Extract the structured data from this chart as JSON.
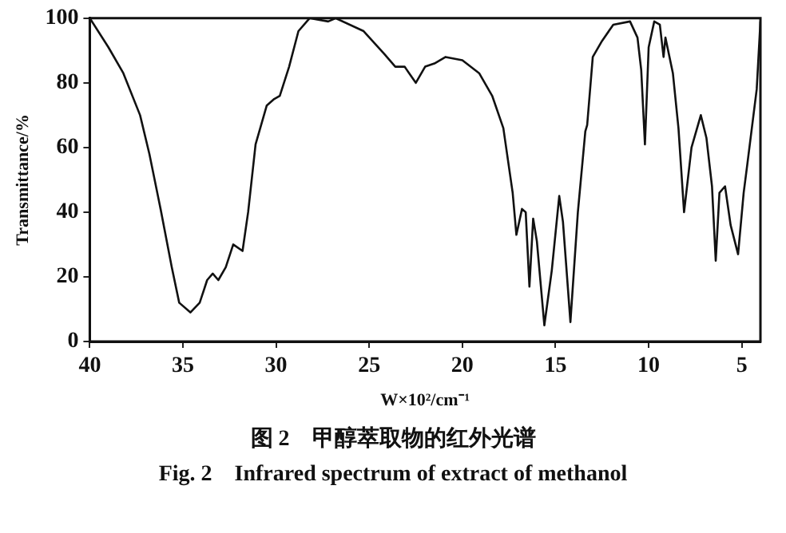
{
  "chart_data": {
    "type": "line",
    "title": "图 2　甲醇萃取物的红外光谱",
    "subtitle": "Fig. 2　Infrared spectrum of extract of methanol",
    "xlabel": "W×10²/cm⁻¹",
    "ylabel": "Transmittance/%",
    "xlim": [
      40,
      4
    ],
    "xticks": [
      40,
      35,
      30,
      25,
      20,
      15,
      10,
      5
    ],
    "ylim": [
      0,
      100
    ],
    "yticks": [
      0,
      20,
      40,
      60,
      80,
      100
    ],
    "grid": false,
    "legend": false,
    "marker": "none",
    "line_style": "solid",
    "series": [
      {
        "color": "#111111",
        "x": [
          40,
          39,
          38.2,
          37.3,
          36.8,
          36.2,
          35.6,
          35.2,
          34.6,
          34.1,
          33.7,
          33.4,
          33.1,
          32.7,
          32.3,
          31.8,
          31.5,
          31.1,
          30.5,
          30.1,
          29.8,
          29.3,
          28.8,
          28.2,
          27.2,
          26.8,
          25.3,
          24.2,
          23.6,
          23.1,
          22.5,
          22.0,
          21.5,
          20.9,
          20,
          19.1,
          18.4,
          17.8,
          17.3,
          17.1,
          16.8,
          16.6,
          16.4,
          16.2,
          16.0,
          15.6,
          15.2,
          14.8,
          14.6,
          14.2,
          13.8,
          13.4,
          13.3,
          13.0,
          12.5,
          11.9,
          11.0,
          10.6,
          10.4,
          10.2,
          10.0,
          9.7,
          9.4,
          9.2,
          9.1,
          8.7,
          8.4,
          8.1,
          7.7,
          7.2,
          6.9,
          6.6,
          6.4,
          6.2,
          5.9,
          5.6,
          5.2,
          4.9,
          4.7,
          4.2,
          4
        ],
        "values": [
          100,
          91,
          83,
          70,
          58,
          41,
          23,
          12,
          9,
          12,
          19,
          21,
          19,
          23,
          30,
          28,
          40,
          61,
          73,
          75,
          76,
          85,
          96,
          100,
          99,
          100,
          96,
          89,
          85,
          85,
          80,
          85,
          86,
          88,
          87,
          83,
          76,
          66,
          46,
          33,
          41,
          40,
          17,
          38,
          31,
          5,
          22,
          45,
          37,
          6,
          40,
          65,
          67,
          88,
          93,
          98,
          99,
          94,
          84,
          61,
          91,
          99,
          98,
          88,
          94,
          83,
          66,
          40,
          60,
          70,
          63,
          48,
          25,
          46,
          48,
          36,
          27,
          46,
          55,
          78,
          99
        ]
      }
    ]
  }
}
